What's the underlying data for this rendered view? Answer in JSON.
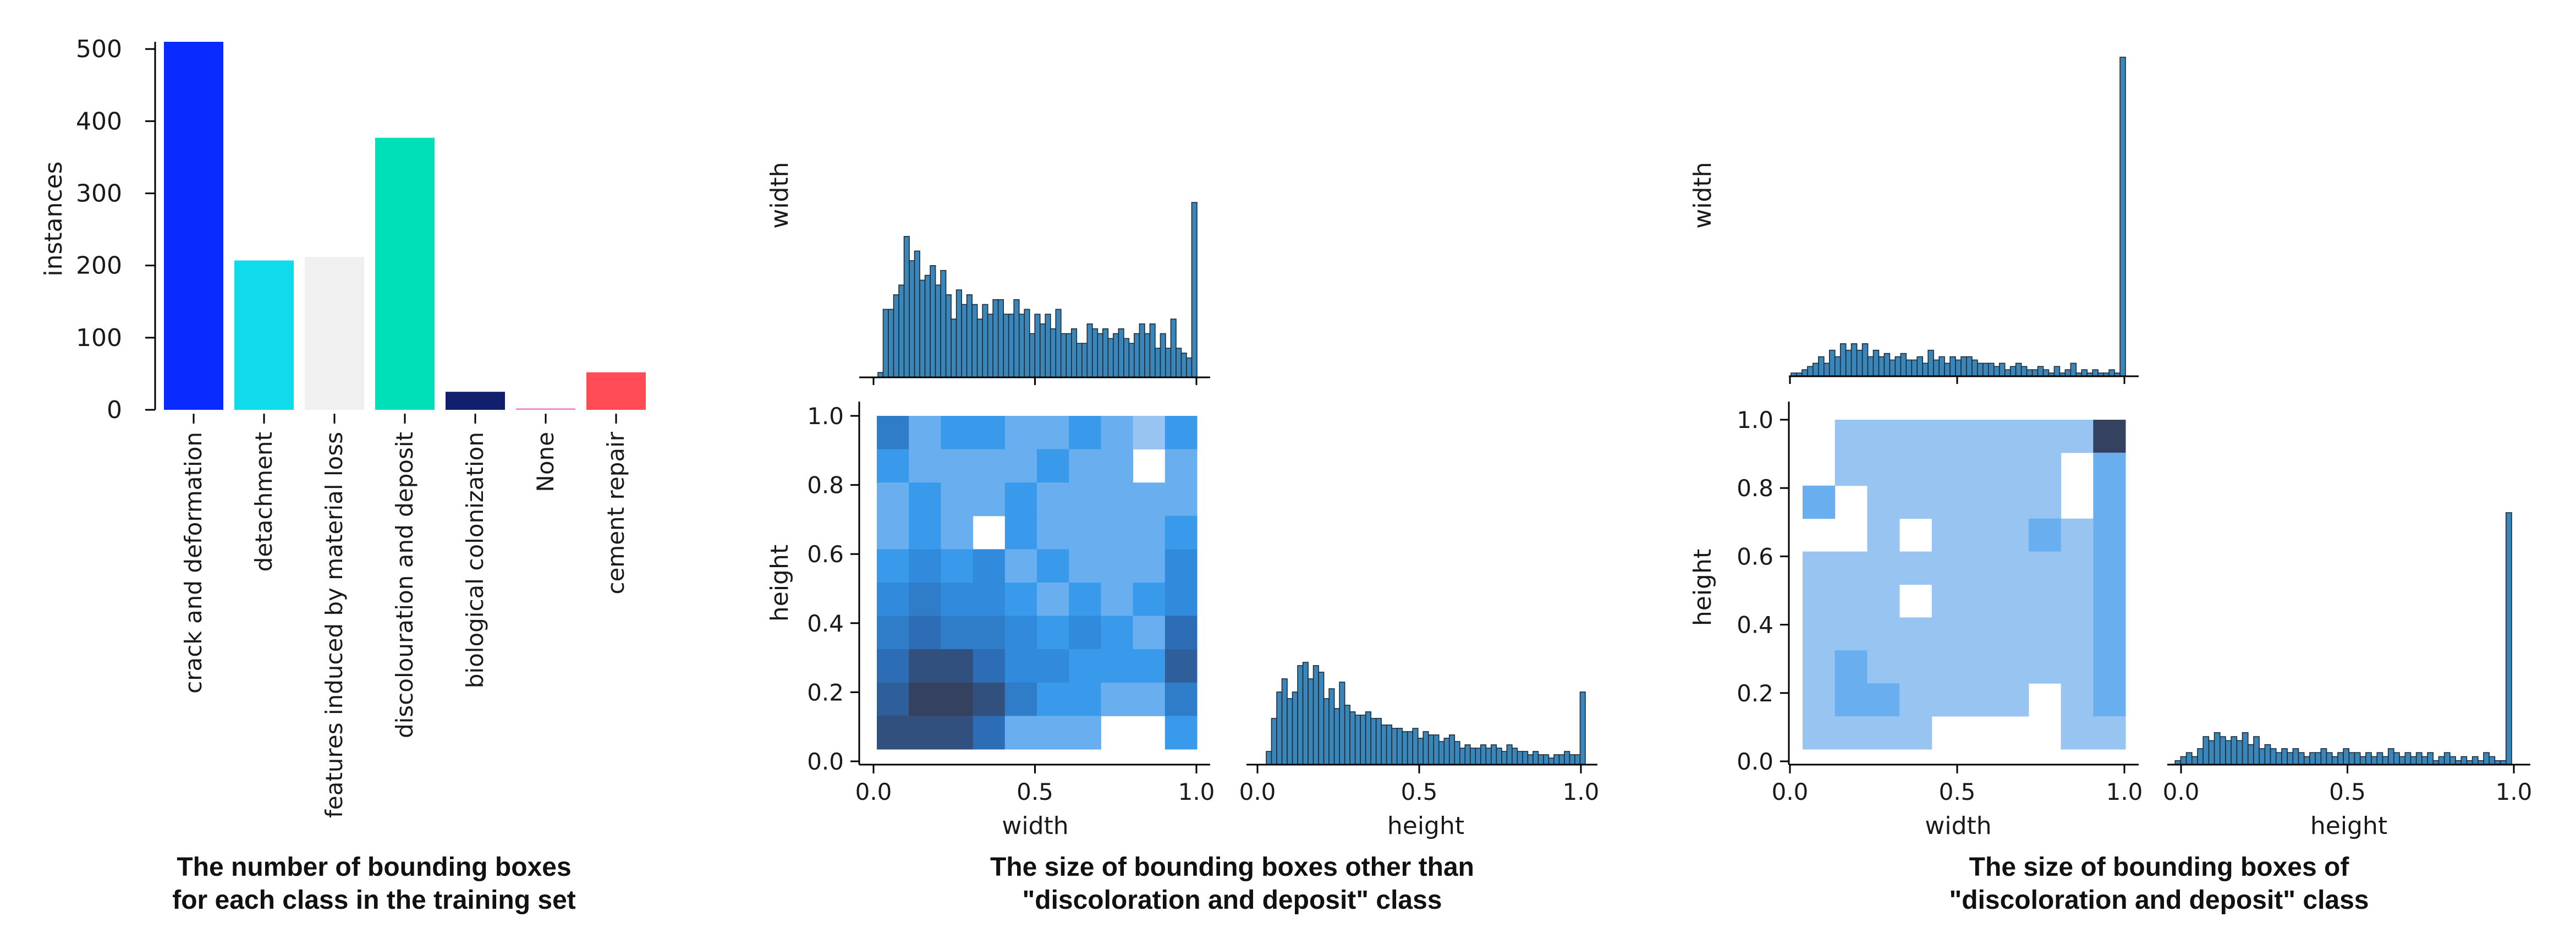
{
  "panel1": {
    "caption": [
      "The number of bounding boxes",
      "for each class in the training set"
    ],
    "chart_data": {
      "type": "bar",
      "ylabel": "instances",
      "ylim": [
        0,
        510
      ],
      "yticks": [
        0,
        100,
        200,
        300,
        400,
        500
      ],
      "categories": [
        "crack and deformation",
        "detachment",
        "features induced by material loss",
        "discolouration and deposit",
        "biological colonization",
        "None",
        "cement repair"
      ],
      "values": [
        510,
        207,
        212,
        377,
        25,
        2,
        52
      ],
      "colors": [
        "#0a2bff",
        "#10dbeb",
        "#f0f0f0",
        "#00e0b8",
        "#121f6d",
        "#ff77cc",
        "#ff4b55"
      ]
    }
  },
  "panel2": {
    "caption": [
      "The size of bounding boxes other than",
      "\"discoloration and deposit\" class"
    ],
    "chart_data": {
      "type": "heatmap",
      "xlabel": "width",
      "ylabel": "height",
      "xlim": [
        0,
        1
      ],
      "ylim": [
        0,
        1
      ],
      "ticks": [
        "0.0",
        "0.5",
        "1.0"
      ],
      "yticks": [
        "0.0",
        "0.2",
        "0.4",
        "0.6",
        "0.8",
        "1.0"
      ],
      "grid_size": 10,
      "counts": [
        [
          5,
          2,
          3,
          3,
          2,
          2,
          3,
          2,
          1,
          3
        ],
        [
          3,
          2,
          2,
          2,
          2,
          3,
          2,
          2,
          0,
          2
        ],
        [
          2,
          3,
          2,
          2,
          3,
          2,
          2,
          2,
          2,
          2
        ],
        [
          2,
          3,
          2,
          0,
          3,
          2,
          2,
          2,
          2,
          3
        ],
        [
          3,
          4,
          3,
          4,
          2,
          3,
          2,
          2,
          2,
          4
        ],
        [
          4,
          5,
          4,
          4,
          3,
          2,
          3,
          2,
          3,
          4
        ],
        [
          5,
          6,
          5,
          5,
          4,
          3,
          4,
          3,
          2,
          6
        ],
        [
          6,
          8,
          8,
          6,
          4,
          4,
          3,
          3,
          3,
          7
        ],
        [
          7,
          9,
          9,
          8,
          5,
          3,
          3,
          2,
          2,
          5
        ],
        [
          8,
          8,
          8,
          6,
          2,
          2,
          2,
          0,
          0,
          3
        ]
      ],
      "marginal_top_label": "width",
      "marginal_top": [
        1,
        14,
        14,
        17,
        19,
        29,
        24,
        26,
        20,
        21,
        23,
        19,
        22,
        17,
        12,
        18,
        15,
        17,
        15,
        12,
        15,
        13,
        16,
        16,
        13,
        13,
        16,
        13,
        14,
        9,
        13,
        11,
        13,
        10,
        14,
        9,
        9,
        10,
        7,
        7,
        11,
        10,
        9,
        10,
        8,
        9,
        10,
        8,
        7,
        9,
        11,
        9,
        11,
        6,
        9,
        6,
        12,
        6,
        5,
        4,
        36
      ],
      "marginal_right_label": "height",
      "marginal_right": [
        4,
        14,
        22,
        26,
        20,
        22,
        30,
        31,
        26,
        30,
        28,
        20,
        23,
        17,
        25,
        18,
        16,
        15,
        15,
        16,
        14,
        14,
        12,
        12,
        11,
        11,
        10,
        10,
        11,
        8,
        10,
        9,
        9,
        7,
        8,
        9,
        7,
        5,
        6,
        5,
        5,
        6,
        5,
        6,
        5,
        4,
        6,
        5,
        4,
        4,
        3,
        4,
        3,
        3,
        2,
        3,
        3,
        4,
        3,
        3,
        22
      ]
    }
  },
  "panel3": {
    "caption": [
      "The size of bounding boxes of",
      "\"discoloration and deposit\" class"
    ],
    "chart_data": {
      "type": "heatmap",
      "xlabel": "width",
      "ylabel": "height",
      "xlim": [
        0,
        1
      ],
      "ylim": [
        0,
        1
      ],
      "ticks": [
        "0.0",
        "0.5",
        "1.0"
      ],
      "yticks": [
        "0.0",
        "0.2",
        "0.4",
        "0.6",
        "0.8",
        "1.0"
      ],
      "grid_size": 10,
      "counts": [
        [
          0,
          1,
          1,
          1,
          1,
          1,
          1,
          1,
          1,
          9
        ],
        [
          0,
          1,
          1,
          1,
          1,
          1,
          1,
          1,
          0,
          2
        ],
        [
          2,
          0,
          1,
          1,
          1,
          1,
          1,
          1,
          0,
          2
        ],
        [
          0,
          0,
          1,
          0,
          1,
          1,
          1,
          2,
          1,
          2
        ],
        [
          1,
          1,
          1,
          1,
          1,
          1,
          1,
          1,
          1,
          2
        ],
        [
          1,
          1,
          1,
          0,
          1,
          1,
          1,
          1,
          1,
          2
        ],
        [
          1,
          1,
          1,
          1,
          1,
          1,
          1,
          1,
          1,
          2
        ],
        [
          1,
          2,
          1,
          1,
          1,
          1,
          1,
          1,
          1,
          2
        ],
        [
          1,
          2,
          2,
          1,
          1,
          1,
          1,
          0,
          1,
          2
        ],
        [
          1,
          1,
          1,
          1,
          0,
          0,
          0,
          0,
          1,
          1
        ]
      ],
      "marginal_top_label": "width",
      "marginal_top": [
        1,
        1,
        2,
        3,
        4,
        6,
        4,
        8,
        6,
        10,
        8,
        10,
        8,
        10,
        6,
        8,
        6,
        7,
        5,
        6,
        7,
        5,
        5,
        6,
        4,
        8,
        5,
        6,
        4,
        6,
        5,
        6,
        6,
        5,
        4,
        4,
        4,
        3,
        4,
        2,
        3,
        4,
        3,
        2,
        2,
        3,
        2,
        1,
        3,
        1,
        2,
        4,
        1,
        2,
        1,
        2,
        1,
        1,
        2,
        1,
        98
      ],
      "marginal_right_label": "height",
      "marginal_right": [
        0,
        1,
        2,
        3,
        2,
        4,
        7,
        6,
        8,
        7,
        6,
        7,
        6,
        8,
        5,
        7,
        4,
        5,
        4,
        3,
        4,
        3,
        4,
        3,
        2,
        3,
        3,
        4,
        3,
        2,
        3,
        4,
        3,
        3,
        2,
        3,
        2,
        3,
        2,
        4,
        3,
        2,
        3,
        2,
        3,
        2,
        3,
        1,
        2,
        3,
        2,
        1,
        2,
        1,
        2,
        1,
        3,
        2,
        1,
        1,
        63
      ]
    }
  }
}
